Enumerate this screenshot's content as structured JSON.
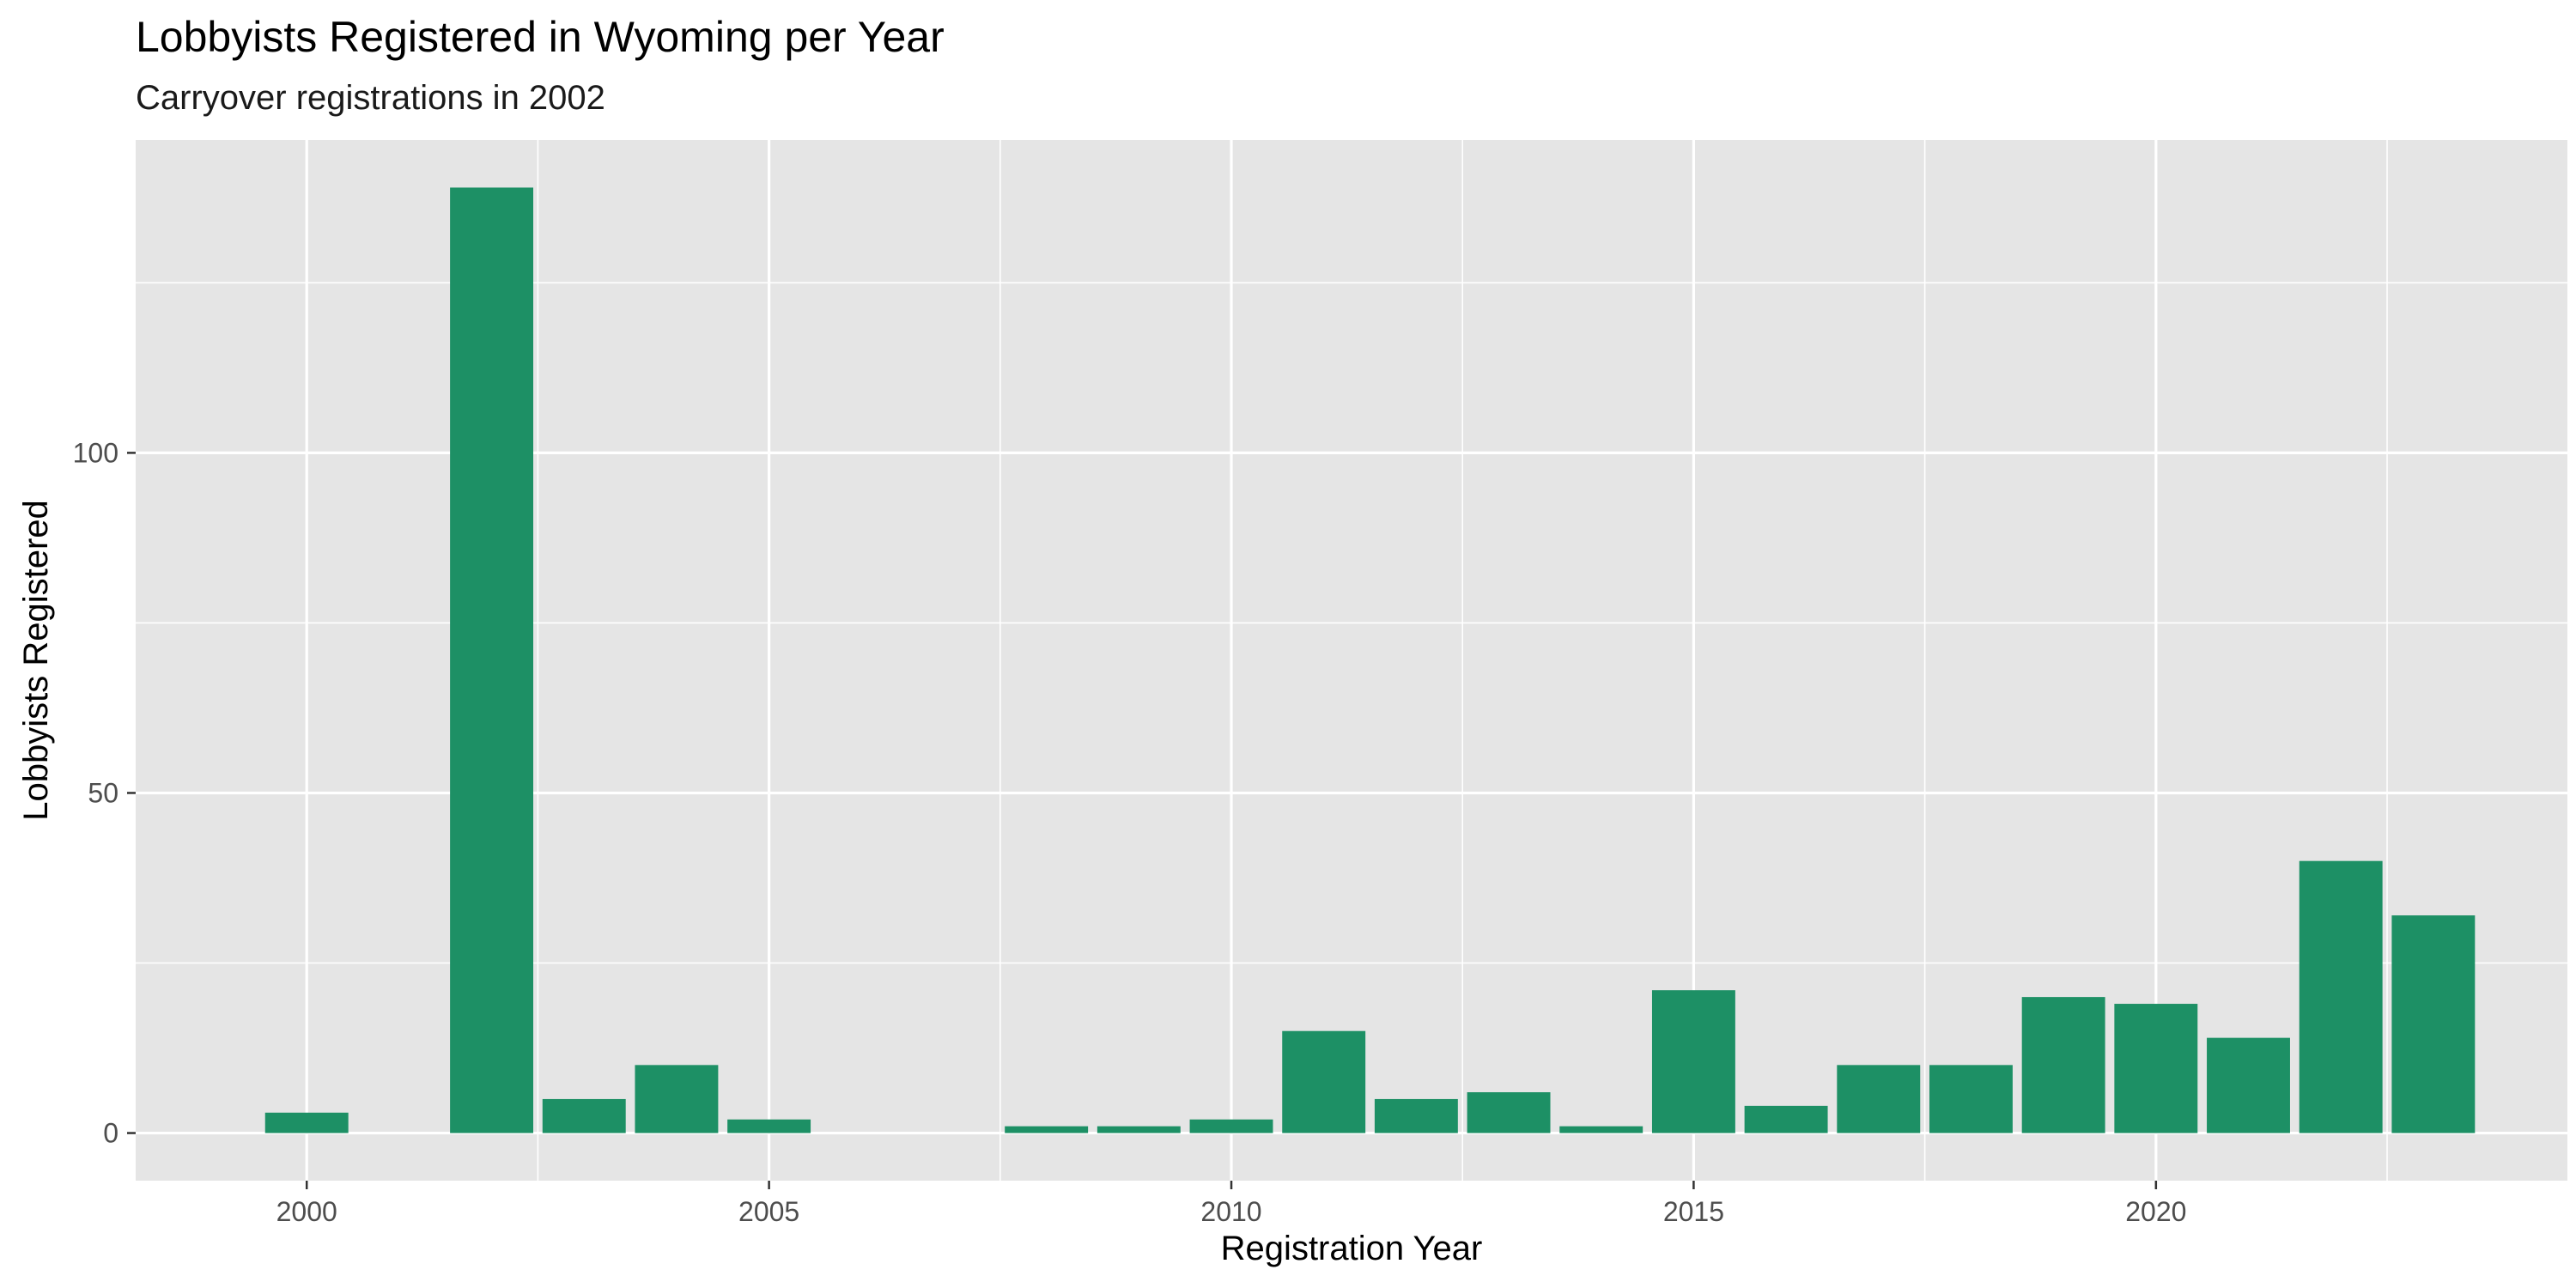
{
  "chart_data": {
    "type": "bar",
    "title": "Lobbyists Registered in Wyoming per Year",
    "subtitle": "Carryover registrations in 2002",
    "xlabel": "Registration Year",
    "ylabel": "Lobbyists Registered",
    "x": [
      2000,
      2002,
      2003,
      2004,
      2005,
      2008,
      2009,
      2010,
      2011,
      2012,
      2013,
      2014,
      2015,
      2016,
      2017,
      2018,
      2019,
      2020,
      2021,
      2022,
      2023
    ],
    "values": [
      3,
      139,
      5,
      10,
      2,
      1,
      1,
      2,
      15,
      5,
      6,
      1,
      21,
      4,
      10,
      10,
      20,
      19,
      14,
      40,
      32
    ],
    "xlim": [
      1998.15,
      2024.45
    ],
    "ylim": [
      -7,
      146
    ],
    "x_ticks": [
      2000,
      2005,
      2010,
      2015,
      2020
    ],
    "x_tick_labels": [
      "2000",
      "2005",
      "2010",
      "2015",
      "2020"
    ],
    "y_ticks": [
      0,
      50,
      100
    ],
    "y_tick_labels": [
      "0",
      "50",
      "100"
    ],
    "bar_color": "#1D9065",
    "panel_color": "#E5E5E5",
    "grid": true,
    "legend": "none"
  }
}
